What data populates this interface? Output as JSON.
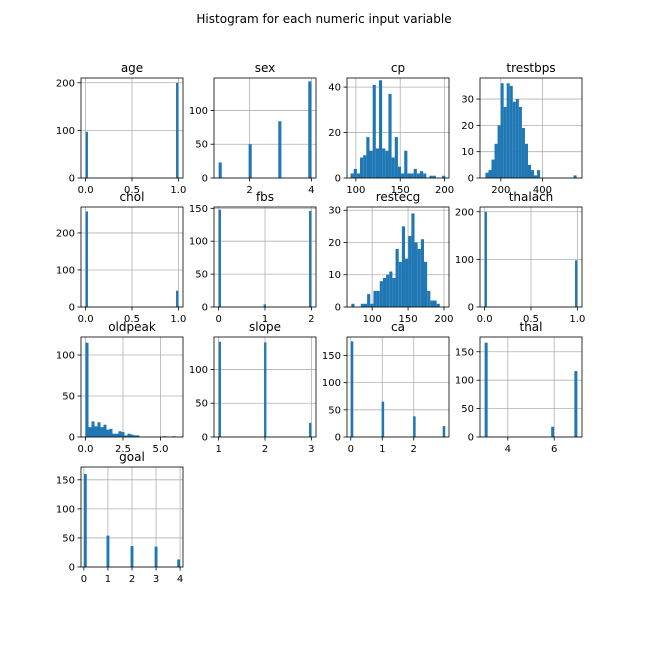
{
  "figure_title": "Histogram for each numeric input variable",
  "colors": {
    "bar": "#1f77b4",
    "grid": "#b0b0b0",
    "axis": "#000000",
    "background": "#ffffff"
  },
  "chart_data": [
    {
      "type": "bar",
      "title": "age",
      "grid": true,
      "xlim": [
        -0.05,
        1.05
      ],
      "ylim": [
        0,
        210
      ],
      "xticks": [
        0,
        0.5,
        1
      ],
      "xtick_labels": [
        "0.0",
        "0.5",
        "1.0"
      ],
      "yticks": [
        0,
        100,
        200
      ],
      "ytick_labels": [
        "0",
        "100",
        "200"
      ],
      "bins": [
        {
          "x0": 0,
          "x1": 0.025,
          "count": 97
        },
        {
          "x0": 0.975,
          "x1": 1.0,
          "count": 200
        }
      ]
    },
    {
      "type": "bar",
      "title": "sex",
      "grid": true,
      "xlim": [
        0.85,
        4.15
      ],
      "ylim": [
        0,
        148
      ],
      "xticks": [
        2,
        4
      ],
      "xtick_labels": [
        "2",
        "4"
      ],
      "yticks": [
        0,
        50,
        100
      ],
      "ytick_labels": [
        "0",
        "50",
        "100"
      ],
      "bins": [
        {
          "x0": 1.0,
          "x1": 1.1,
          "count": 23
        },
        {
          "x0": 1.97,
          "x1": 2.07,
          "count": 50
        },
        {
          "x0": 2.93,
          "x1": 3.03,
          "count": 84
        },
        {
          "x0": 3.9,
          "x1": 4.0,
          "count": 143
        }
      ]
    },
    {
      "type": "bar",
      "title": "cp",
      "grid": true,
      "xlim": [
        90,
        205
      ],
      "ylim": [
        0,
        44
      ],
      "xticks": [
        100,
        150,
        200
      ],
      "xtick_labels": [
        "100",
        "150",
        "200"
      ],
      "yticks": [
        0,
        20,
        40
      ],
      "ytick_labels": [
        "0",
        "20",
        "40"
      ],
      "bin_start": 94,
      "bin_width": 3.56,
      "counts": [
        2,
        4,
        2,
        9,
        10,
        18,
        12,
        41,
        13,
        43,
        13,
        12,
        37,
        9,
        18,
        5,
        2,
        12,
        2,
        2,
        4,
        2,
        3,
        2,
        0,
        1,
        1,
        0,
        0,
        1
      ]
    },
    {
      "type": "bar",
      "title": "trestbps",
      "grid": true,
      "xlim": [
        100,
        590
      ],
      "ylim": [
        0,
        38
      ],
      "xticks": [
        200,
        400
      ],
      "xtick_labels": [
        "200",
        "400"
      ],
      "yticks": [
        0,
        10,
        20,
        30
      ],
      "ytick_labels": [
        "0",
        "10",
        "20",
        "30"
      ],
      "bin_start": 126,
      "bin_width": 14.6,
      "counts": [
        2,
        3,
        7,
        13,
        20,
        36,
        27,
        36,
        35,
        29,
        30,
        27,
        19,
        13,
        5,
        3,
        1,
        3,
        0,
        0,
        0,
        0,
        0,
        0,
        0,
        0,
        0,
        0,
        0,
        1
      ]
    },
    {
      "type": "bar",
      "title": "chol",
      "grid": true,
      "xlim": [
        -0.05,
        1.05
      ],
      "ylim": [
        0,
        270
      ],
      "xticks": [
        0,
        0.5,
        1
      ],
      "xtick_labels": [
        "0.0",
        "0.5",
        "1.0"
      ],
      "yticks": [
        0,
        100,
        200
      ],
      "ytick_labels": [
        "0",
        "100",
        "200"
      ],
      "bins": [
        {
          "x0": 0,
          "x1": 0.025,
          "count": 258
        },
        {
          "x0": 0.975,
          "x1": 1.0,
          "count": 44
        }
      ]
    },
    {
      "type": "bar",
      "title": "fbs",
      "grid": true,
      "xlim": [
        -0.1,
        2.1
      ],
      "ylim": [
        0,
        152
      ],
      "xticks": [
        0,
        1,
        2
      ],
      "xtick_labels": [
        "0",
        "1",
        "2"
      ],
      "yticks": [
        0,
        50,
        100,
        150
      ],
      "ytick_labels": [
        "0",
        "50",
        "100",
        "150"
      ],
      "bins": [
        {
          "x0": 0,
          "x1": 0.05,
          "count": 148
        },
        {
          "x0": 0.97,
          "x1": 1.02,
          "count": 4
        },
        {
          "x0": 1.95,
          "x1": 2.0,
          "count": 146
        }
      ]
    },
    {
      "type": "bar",
      "title": "restecg",
      "grid": true,
      "xlim": [
        65,
        207
      ],
      "ylim": [
        0,
        31
      ],
      "xticks": [
        100,
        150,
        200
      ],
      "xtick_labels": [
        "100",
        "150",
        "200"
      ],
      "yticks": [
        0,
        10,
        20,
        30
      ],
      "ytick_labels": [
        "0",
        "10",
        "20",
        "30"
      ],
      "bin_start": 71,
      "bin_width": 4.4,
      "counts": [
        1,
        0,
        0,
        1,
        1,
        4,
        1,
        5,
        5,
        8,
        9,
        10,
        11,
        9,
        18,
        14,
        25,
        15,
        22,
        29,
        20,
        18,
        21,
        14,
        5,
        2,
        2,
        1,
        0,
        0
      ]
    },
    {
      "type": "bar",
      "title": "thalach",
      "grid": true,
      "xlim": [
        -0.05,
        1.05
      ],
      "ylim": [
        0,
        210
      ],
      "xticks": [
        0,
        0.5,
        1
      ],
      "xtick_labels": [
        "0.0",
        "0.5",
        "1.0"
      ],
      "yticks": [
        0,
        100,
        200
      ],
      "ytick_labels": [
        "0",
        "100",
        "200"
      ],
      "bins": [
        {
          "x0": 0,
          "x1": 0.025,
          "count": 200
        },
        {
          "x0": 0.975,
          "x1": 1.0,
          "count": 98
        }
      ]
    },
    {
      "type": "bar",
      "title": "oldpeak",
      "grid": true,
      "xlim": [
        -0.3,
        6.5
      ],
      "ylim": [
        0,
        122
      ],
      "xticks": [
        0,
        2.5,
        5
      ],
      "xtick_labels": [
        "0.0",
        "2.5",
        "5.0"
      ],
      "yticks": [
        0,
        50,
        100
      ],
      "ytick_labels": [
        "0",
        "50",
        "100"
      ],
      "bin_start": 0,
      "bin_width": 0.2,
      "counts": [
        115,
        12,
        19,
        13,
        18,
        12,
        15,
        9,
        10,
        4,
        4,
        7,
        6,
        2,
        4,
        3,
        2,
        2,
        0,
        0,
        0,
        0,
        0,
        0,
        0,
        0,
        1,
        0,
        0,
        1
      ]
    },
    {
      "type": "bar",
      "title": "slope",
      "grid": true,
      "xlim": [
        0.9,
        3.1
      ],
      "ylim": [
        0,
        148
      ],
      "xticks": [
        1,
        2,
        3
      ],
      "xtick_labels": [
        "1",
        "2",
        "3"
      ],
      "yticks": [
        0,
        50,
        100
      ],
      "ytick_labels": [
        "0",
        "50",
        "100"
      ],
      "bins": [
        {
          "x0": 1,
          "x1": 1.05,
          "count": 141
        },
        {
          "x0": 1.98,
          "x1": 2.03,
          "count": 140
        },
        {
          "x0": 2.95,
          "x1": 3.0,
          "count": 21
        }
      ]
    },
    {
      "type": "bar",
      "title": "ca",
      "grid": true,
      "xlim": [
        -0.12,
        3.12
      ],
      "ylim": [
        0,
        184
      ],
      "xticks": [
        0,
        1,
        2
      ],
      "xtick_labels": [
        "0",
        "1",
        "2"
      ],
      "yticks": [
        0,
        50,
        100,
        150
      ],
      "ytick_labels": [
        "0",
        "50",
        "100",
        "150"
      ],
      "bins": [
        {
          "x0": 0,
          "x1": 0.08,
          "count": 176
        },
        {
          "x0": 0.98,
          "x1": 1.06,
          "count": 65
        },
        {
          "x0": 1.98,
          "x1": 2.06,
          "count": 38
        },
        {
          "x0": 2.92,
          "x1": 3.0,
          "count": 20
        }
      ]
    },
    {
      "type": "bar",
      "title": "thal",
      "grid": true,
      "xlim": [
        2.8,
        7.2
      ],
      "ylim": [
        0,
        176
      ],
      "xticks": [
        4,
        6
      ],
      "xtick_labels": [
        "4",
        "6"
      ],
      "yticks": [
        0,
        50,
        100,
        150
      ],
      "ytick_labels": [
        "0",
        "50",
        "100",
        "150"
      ],
      "bins": [
        {
          "x0": 3,
          "x1": 3.13,
          "count": 166
        },
        {
          "x0": 5.87,
          "x1": 6.0,
          "count": 18
        },
        {
          "x0": 6.87,
          "x1": 7.0,
          "count": 116
        }
      ]
    },
    {
      "type": "bar",
      "title": "goal",
      "grid": true,
      "xlim": [
        -0.12,
        4.12
      ],
      "ylim": [
        0,
        172
      ],
      "xticks": [
        0,
        1,
        2,
        3,
        4
      ],
      "xtick_labels": [
        "0",
        "1",
        "2",
        "3",
        "4"
      ],
      "yticks": [
        0,
        50,
        100,
        150
      ],
      "ytick_labels": [
        "0",
        "50",
        "100",
        "150"
      ],
      "bins": [
        {
          "x0": 0,
          "x1": 0.12,
          "count": 160
        },
        {
          "x0": 0.94,
          "x1": 1.06,
          "count": 54
        },
        {
          "x0": 1.94,
          "x1": 2.06,
          "count": 36
        },
        {
          "x0": 2.94,
          "x1": 3.06,
          "count": 35
        },
        {
          "x0": 3.88,
          "x1": 4.0,
          "count": 13
        }
      ]
    }
  ]
}
